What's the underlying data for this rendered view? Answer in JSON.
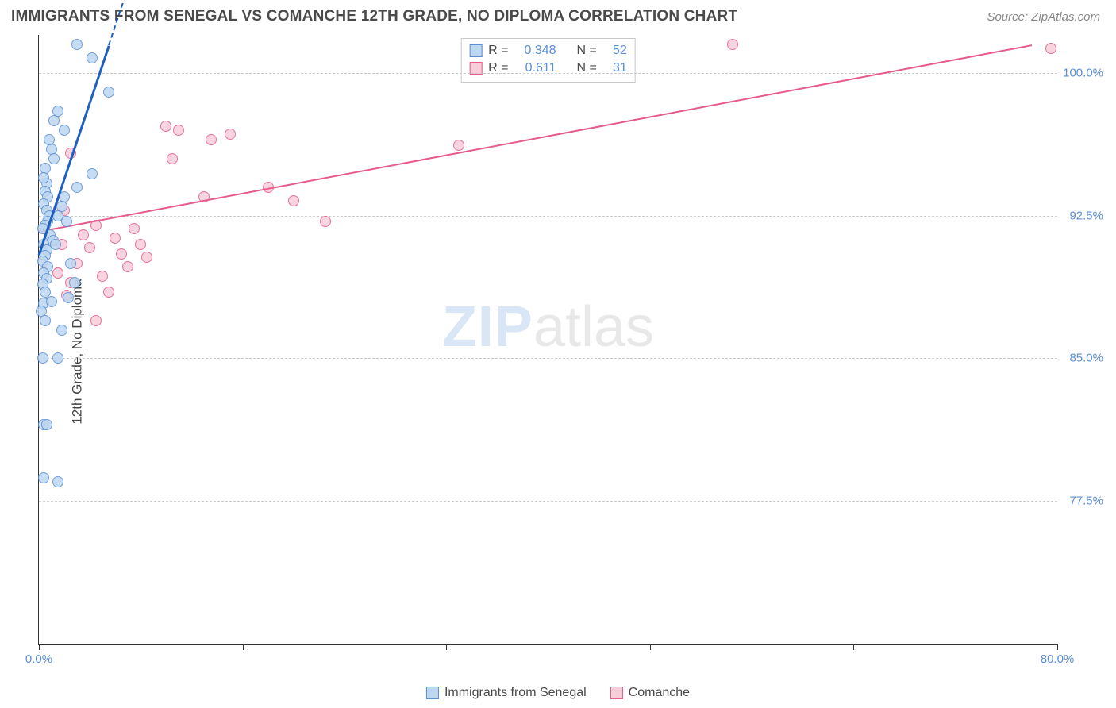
{
  "header": {
    "title": "IMMIGRANTS FROM SENEGAL VS COMANCHE 12TH GRADE, NO DIPLOMA CORRELATION CHART",
    "source": "Source: ZipAtlas.com"
  },
  "chart": {
    "type": "scatter",
    "ylabel": "12th Grade, No Diploma",
    "xlim": [
      0,
      80
    ],
    "ylim": [
      70,
      102
    ],
    "y_ticks": [
      77.5,
      85.0,
      92.5,
      100.0
    ],
    "y_tick_labels": [
      "77.5%",
      "85.0%",
      "92.5%",
      "100.0%"
    ],
    "x_ticks": [
      0,
      16,
      32,
      48,
      64,
      80
    ],
    "x_tick_labels_shown": {
      "0": "0.0%",
      "80": "80.0%"
    },
    "grid_color": "#cccccc",
    "axis_color": "#333333",
    "ytick_label_color": "#5b8fd6",
    "xtick_label_color": "#5b8fd6",
    "background_color": "#ffffff",
    "watermark": {
      "a": "ZIP",
      "b": "atlas",
      "color_a": "#d9e6f5",
      "color_b": "#e8e8e8",
      "fontsize": 72
    }
  },
  "series": {
    "senegal": {
      "label": "Immigrants from Senegal",
      "fill": "#bdd7f0",
      "stroke": "#5b8fd6",
      "trend_color": "#1f5fbf",
      "trend_width": 3,
      "trend_dashed_extension": true,
      "R": "0.348",
      "N": "52",
      "trend": {
        "x1": 0,
        "y1": 90.5,
        "x2": 5.5,
        "y2": 101.5
      },
      "points": [
        [
          3.0,
          101.5
        ],
        [
          4.2,
          100.8
        ],
        [
          5.5,
          99.0
        ],
        [
          1.0,
          96.0
        ],
        [
          1.2,
          95.5
        ],
        [
          0.5,
          95.0
        ],
        [
          0.6,
          94.2
        ],
        [
          0.5,
          93.8
        ],
        [
          0.7,
          93.5
        ],
        [
          0.4,
          93.1
        ],
        [
          0.6,
          92.8
        ],
        [
          0.8,
          92.5
        ],
        [
          0.7,
          92.2
        ],
        [
          0.5,
          92.0
        ],
        [
          0.3,
          91.8
        ],
        [
          0.9,
          91.5
        ],
        [
          1.1,
          91.2
        ],
        [
          0.4,
          91.0
        ],
        [
          0.6,
          90.7
        ],
        [
          0.5,
          90.4
        ],
        [
          0.3,
          90.1
        ],
        [
          0.7,
          89.8
        ],
        [
          0.4,
          89.5
        ],
        [
          0.6,
          89.2
        ],
        [
          0.3,
          88.9
        ],
        [
          0.5,
          88.5
        ],
        [
          2.3,
          88.2
        ],
        [
          0.4,
          87.9
        ],
        [
          0.2,
          87.5
        ],
        [
          0.5,
          87.0
        ],
        [
          1.5,
          85.0
        ],
        [
          0.3,
          85.0
        ],
        [
          0.4,
          81.5
        ],
        [
          0.6,
          81.5
        ],
        [
          0.4,
          78.7
        ],
        [
          1.5,
          78.5
        ],
        [
          4.2,
          94.7
        ],
        [
          3.0,
          94.0
        ],
        [
          2.0,
          93.5
        ],
        [
          1.8,
          93.0
        ],
        [
          1.5,
          92.5
        ],
        [
          2.2,
          92.2
        ],
        [
          1.3,
          91.0
        ],
        [
          2.5,
          90.0
        ],
        [
          2.8,
          89.0
        ],
        [
          1.0,
          88.0
        ],
        [
          1.8,
          86.5
        ],
        [
          0.8,
          96.5
        ],
        [
          1.2,
          97.5
        ],
        [
          1.5,
          98.0
        ],
        [
          2.0,
          97.0
        ],
        [
          0.4,
          94.5
        ]
      ]
    },
    "comanche": {
      "label": "Comanche",
      "fill": "#f7cdd9",
      "stroke": "#e75a8d",
      "trend_color": "#e75a8d",
      "trend_width": 2.5,
      "R": "0.611",
      "N": "31",
      "trend": {
        "x1": 0,
        "y1": 91.7,
        "x2": 78,
        "y2": 101.5
      },
      "points": [
        [
          79.5,
          101.3
        ],
        [
          54.5,
          101.5
        ],
        [
          33.0,
          96.2
        ],
        [
          22.5,
          92.2
        ],
        [
          20.0,
          93.3
        ],
        [
          18.0,
          94.0
        ],
        [
          15.0,
          96.8
        ],
        [
          13.5,
          96.5
        ],
        [
          11.0,
          97.0
        ],
        [
          10.5,
          95.5
        ],
        [
          8.5,
          90.3
        ],
        [
          8.0,
          91.0
        ],
        [
          7.5,
          91.8
        ],
        [
          7.0,
          89.8
        ],
        [
          6.5,
          90.5
        ],
        [
          6.0,
          91.3
        ],
        [
          5.5,
          88.5
        ],
        [
          5.0,
          89.3
        ],
        [
          4.5,
          92.0
        ],
        [
          4.0,
          90.8
        ],
        [
          3.5,
          91.5
        ],
        [
          3.0,
          90.0
        ],
        [
          2.5,
          89.0
        ],
        [
          2.2,
          88.3
        ],
        [
          2.0,
          92.8
        ],
        [
          1.8,
          91.0
        ],
        [
          1.5,
          89.5
        ],
        [
          4.5,
          87.0
        ],
        [
          13.0,
          93.5
        ],
        [
          10.0,
          97.2
        ],
        [
          2.5,
          95.8
        ]
      ]
    }
  },
  "legend_bottom": {
    "items": [
      {
        "swatch_fill": "#bdd7f0",
        "swatch_stroke": "#5b8fd6",
        "label": "Immigrants from Senegal"
      },
      {
        "swatch_fill": "#f7cdd9",
        "swatch_stroke": "#e75a8d",
        "label": "Comanche"
      }
    ]
  },
  "stat_box": {
    "rows": [
      {
        "swatch_fill": "#bdd7f0",
        "swatch_stroke": "#5b8fd6",
        "r_label": "R =",
        "r_val": "0.348",
        "n_label": "N =",
        "n_val": "52"
      },
      {
        "swatch_fill": "#f7cdd9",
        "swatch_stroke": "#e75a8d",
        "r_label": "R =",
        "r_val": "0.611",
        "n_label": "N =",
        "n_val": "31"
      }
    ]
  }
}
